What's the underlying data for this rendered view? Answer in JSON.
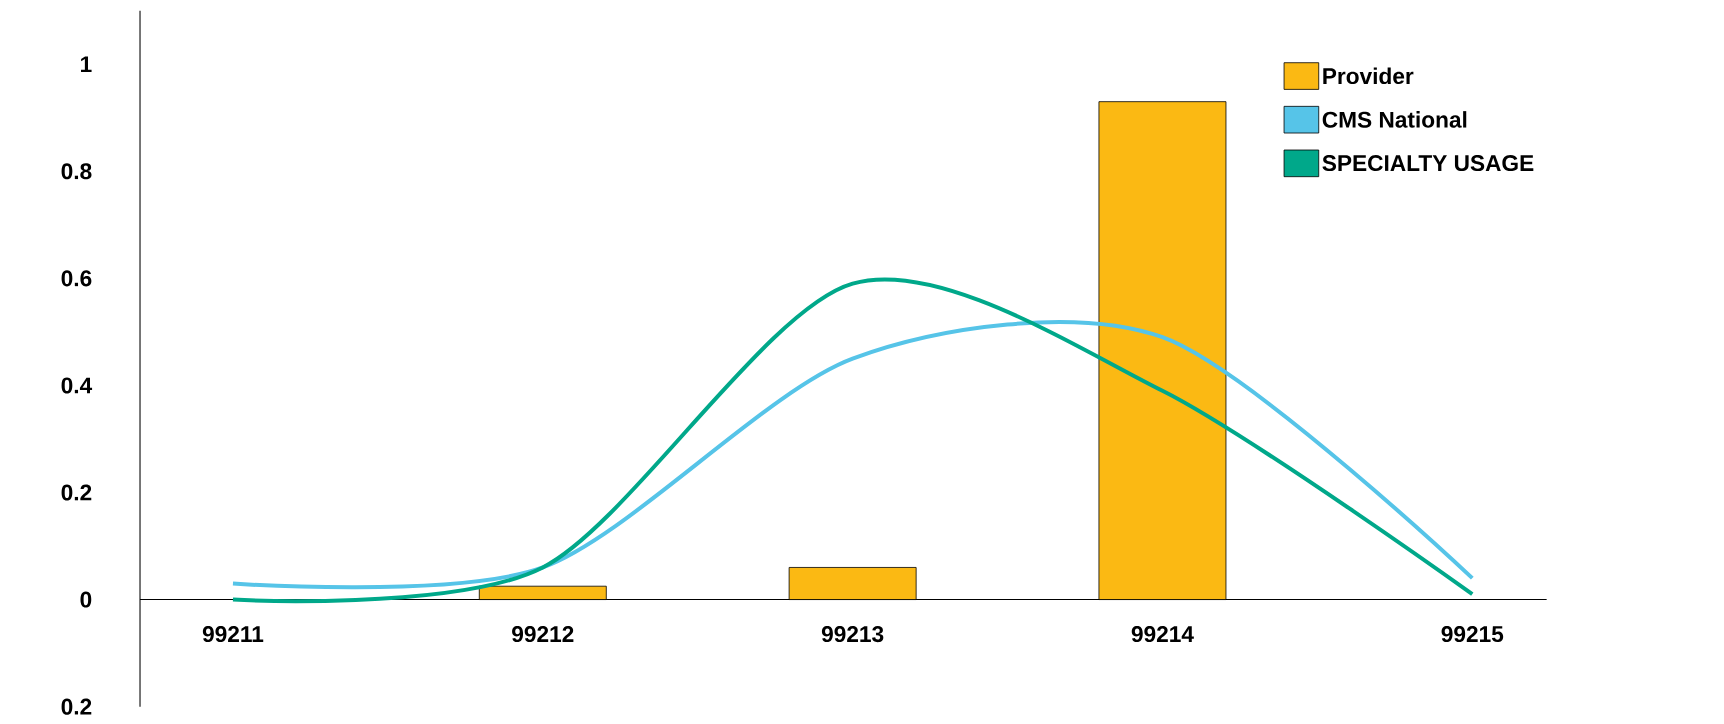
{
  "chart_data": {
    "type": "bar",
    "categories": [
      "99211",
      "99212",
      "99213",
      "99214",
      "99215"
    ],
    "series": [
      {
        "name": "Provider",
        "color": "#fbb913",
        "values": [
          null,
          0.025,
          0.06,
          0.93,
          null
        ]
      },
      {
        "name": "CMS National",
        "type": "line",
        "color": "#56c4e8",
        "values": [
          0.03,
          0.06,
          0.45,
          0.49,
          0.04
        ]
      },
      {
        "name": "SPECIALTY USAGE",
        "type": "line",
        "color": "#00a88a",
        "values": [
          0,
          0.06,
          0.59,
          0.39,
          0.01
        ]
      }
    ],
    "ylim": [
      -0.2,
      1.1
    ],
    "yticks": [
      {
        "value": -0.2,
        "label": "0.2"
      },
      0,
      0.2,
      0.4,
      0.6,
      0.8,
      1
    ],
    "grid": false,
    "legend": "top right",
    "marker": "none"
  }
}
